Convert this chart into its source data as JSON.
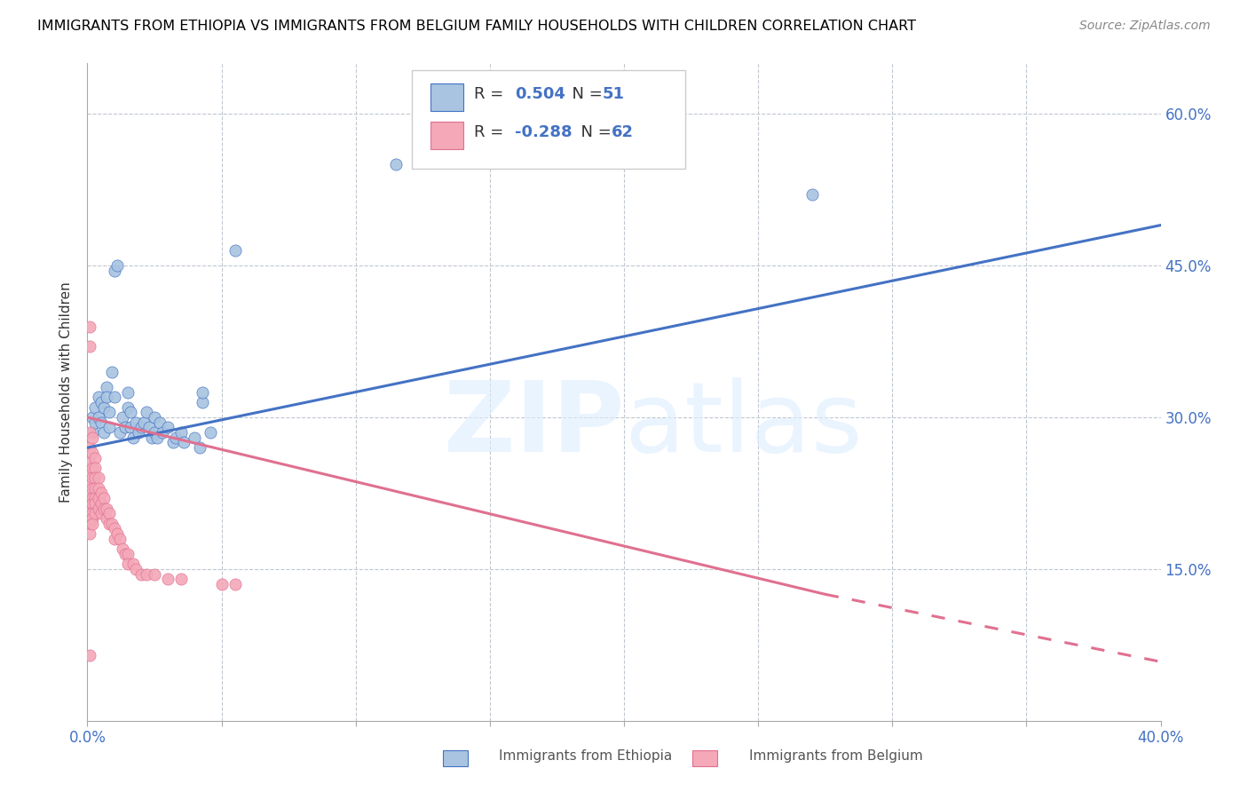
{
  "title": "IMMIGRANTS FROM ETHIOPIA VS IMMIGRANTS FROM BELGIUM FAMILY HOUSEHOLDS WITH CHILDREN CORRELATION CHART",
  "source": "Source: ZipAtlas.com",
  "ylabel": "Family Households with Children",
  "legend_ethiopia": "Immigrants from Ethiopia",
  "legend_belgium": "Immigrants from Belgium",
  "r_ethiopia": "0.504",
  "n_ethiopia": "51",
  "r_belgium": "-0.288",
  "n_belgium": "62",
  "color_ethiopia": "#a8c4e0",
  "color_belgium": "#f4a8b8",
  "line_color_ethiopia": "#4472c4",
  "line_color_belgium": "#e07090",
  "xlim": [
    0.0,
    0.4
  ],
  "ylim": [
    0.0,
    0.65
  ],
  "ethiopia_scatter": [
    [
      0.002,
      0.3
    ],
    [
      0.002,
      0.285
    ],
    [
      0.003,
      0.31
    ],
    [
      0.003,
      0.295
    ],
    [
      0.004,
      0.32
    ],
    [
      0.004,
      0.3
    ],
    [
      0.005,
      0.315
    ],
    [
      0.005,
      0.295
    ],
    [
      0.006,
      0.31
    ],
    [
      0.006,
      0.285
    ],
    [
      0.007,
      0.33
    ],
    [
      0.007,
      0.32
    ],
    [
      0.008,
      0.305
    ],
    [
      0.008,
      0.29
    ],
    [
      0.009,
      0.345
    ],
    [
      0.01,
      0.32
    ],
    [
      0.01,
      0.445
    ],
    [
      0.011,
      0.45
    ],
    [
      0.012,
      0.285
    ],
    [
      0.013,
      0.3
    ],
    [
      0.014,
      0.29
    ],
    [
      0.015,
      0.31
    ],
    [
      0.015,
      0.325
    ],
    [
      0.016,
      0.305
    ],
    [
      0.016,
      0.29
    ],
    [
      0.017,
      0.28
    ],
    [
      0.018,
      0.295
    ],
    [
      0.019,
      0.285
    ],
    [
      0.02,
      0.29
    ],
    [
      0.021,
      0.295
    ],
    [
      0.022,
      0.305
    ],
    [
      0.023,
      0.29
    ],
    [
      0.024,
      0.28
    ],
    [
      0.025,
      0.3
    ],
    [
      0.025,
      0.285
    ],
    [
      0.026,
      0.28
    ],
    [
      0.027,
      0.295
    ],
    [
      0.028,
      0.285
    ],
    [
      0.03,
      0.29
    ],
    [
      0.032,
      0.275
    ],
    [
      0.033,
      0.28
    ],
    [
      0.035,
      0.285
    ],
    [
      0.036,
      0.275
    ],
    [
      0.04,
      0.28
    ],
    [
      0.042,
      0.27
    ],
    [
      0.043,
      0.315
    ],
    [
      0.043,
      0.325
    ],
    [
      0.046,
      0.285
    ],
    [
      0.055,
      0.465
    ],
    [
      0.115,
      0.55
    ],
    [
      0.27,
      0.52
    ]
  ],
  "belgium_scatter": [
    [
      0.001,
      0.39
    ],
    [
      0.001,
      0.37
    ],
    [
      0.001,
      0.285
    ],
    [
      0.001,
      0.27
    ],
    [
      0.001,
      0.255
    ],
    [
      0.001,
      0.245
    ],
    [
      0.001,
      0.235
    ],
    [
      0.001,
      0.225
    ],
    [
      0.001,
      0.215
    ],
    [
      0.001,
      0.205
    ],
    [
      0.001,
      0.2
    ],
    [
      0.001,
      0.195
    ],
    [
      0.001,
      0.185
    ],
    [
      0.002,
      0.28
    ],
    [
      0.002,
      0.265
    ],
    [
      0.002,
      0.25
    ],
    [
      0.002,
      0.24
    ],
    [
      0.002,
      0.23
    ],
    [
      0.002,
      0.22
    ],
    [
      0.002,
      0.215
    ],
    [
      0.002,
      0.205
    ],
    [
      0.002,
      0.2
    ],
    [
      0.002,
      0.195
    ],
    [
      0.003,
      0.26
    ],
    [
      0.003,
      0.25
    ],
    [
      0.003,
      0.24
    ],
    [
      0.003,
      0.23
    ],
    [
      0.003,
      0.22
    ],
    [
      0.003,
      0.215
    ],
    [
      0.003,
      0.205
    ],
    [
      0.004,
      0.24
    ],
    [
      0.004,
      0.23
    ],
    [
      0.004,
      0.22
    ],
    [
      0.004,
      0.21
    ],
    [
      0.005,
      0.225
    ],
    [
      0.005,
      0.215
    ],
    [
      0.005,
      0.205
    ],
    [
      0.006,
      0.22
    ],
    [
      0.006,
      0.21
    ],
    [
      0.007,
      0.21
    ],
    [
      0.007,
      0.2
    ],
    [
      0.008,
      0.205
    ],
    [
      0.008,
      0.195
    ],
    [
      0.009,
      0.195
    ],
    [
      0.01,
      0.19
    ],
    [
      0.01,
      0.18
    ],
    [
      0.011,
      0.185
    ],
    [
      0.012,
      0.18
    ],
    [
      0.013,
      0.17
    ],
    [
      0.014,
      0.165
    ],
    [
      0.015,
      0.165
    ],
    [
      0.015,
      0.155
    ],
    [
      0.017,
      0.155
    ],
    [
      0.018,
      0.15
    ],
    [
      0.02,
      0.145
    ],
    [
      0.022,
      0.145
    ],
    [
      0.025,
      0.145
    ],
    [
      0.03,
      0.14
    ],
    [
      0.035,
      0.14
    ],
    [
      0.05,
      0.135
    ],
    [
      0.055,
      0.135
    ],
    [
      0.001,
      0.065
    ]
  ],
  "ethiopia_trendline": [
    [
      0.0,
      0.27
    ],
    [
      0.4,
      0.49
    ]
  ],
  "belgium_trendline_solid": [
    [
      0.0,
      0.3
    ],
    [
      0.275,
      0.125
    ]
  ],
  "belgium_trendline_dashed": [
    [
      0.275,
      0.125
    ],
    [
      0.5,
      0.005
    ]
  ]
}
